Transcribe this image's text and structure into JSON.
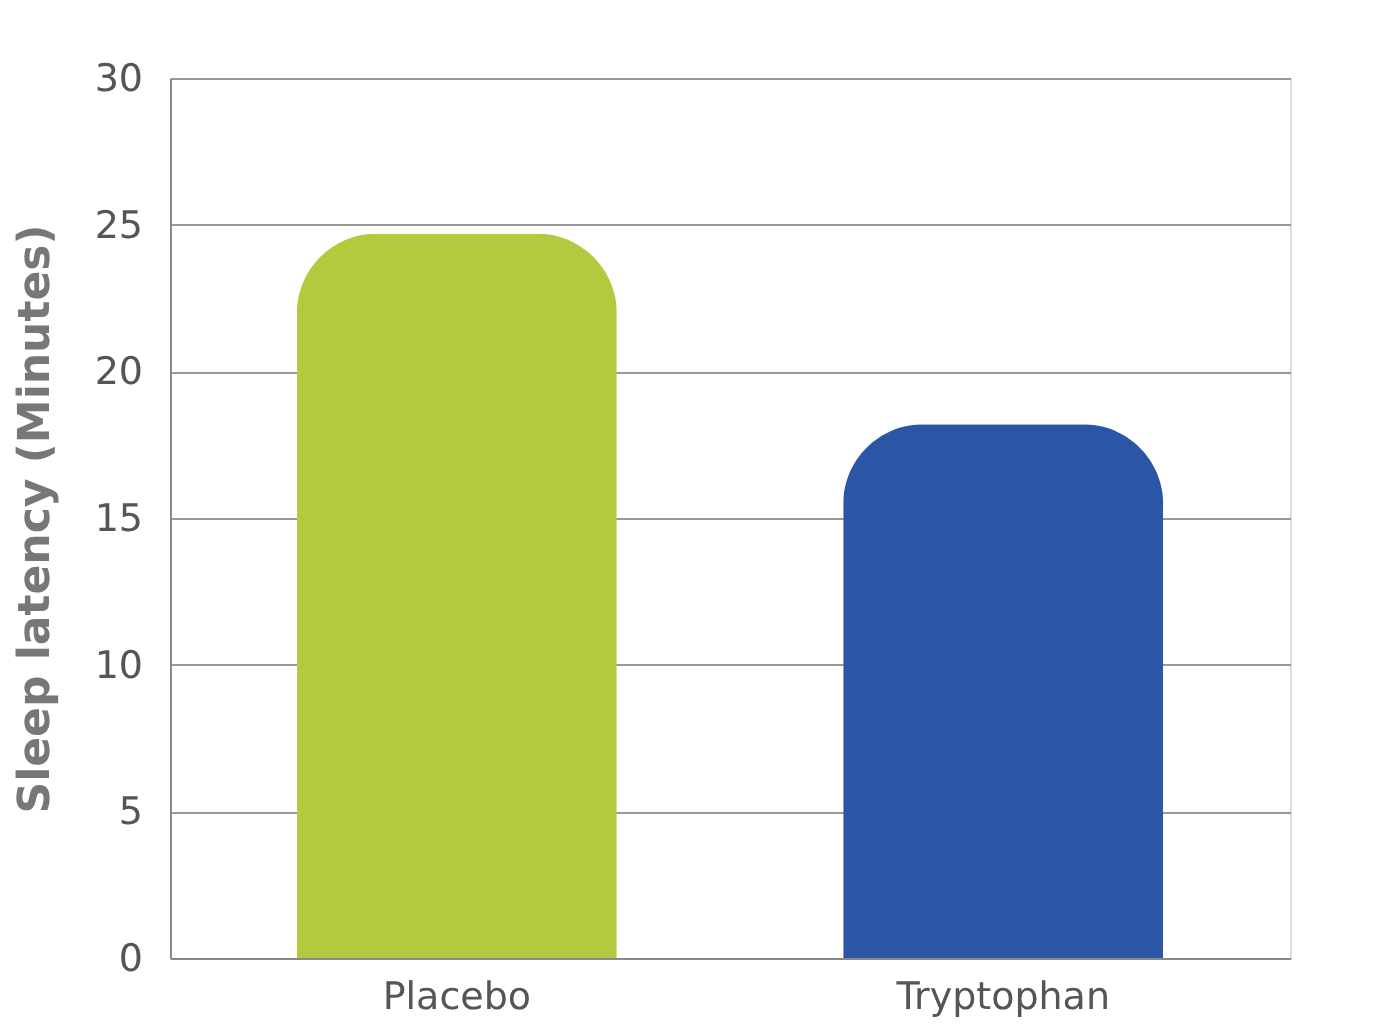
{
  "chart_data": {
    "type": "bar",
    "ylabel": "Sleep latency  (Minutes)",
    "categories": [
      "Placebo",
      "Tryptophan"
    ],
    "values": [
      24.7,
      18.2
    ],
    "colors": [
      "#b2cb3e",
      "#2b56a5"
    ],
    "ylim": [
      0,
      30
    ],
    "yticks": [
      0,
      5,
      10,
      15,
      20,
      25,
      30
    ],
    "grid": "y"
  }
}
